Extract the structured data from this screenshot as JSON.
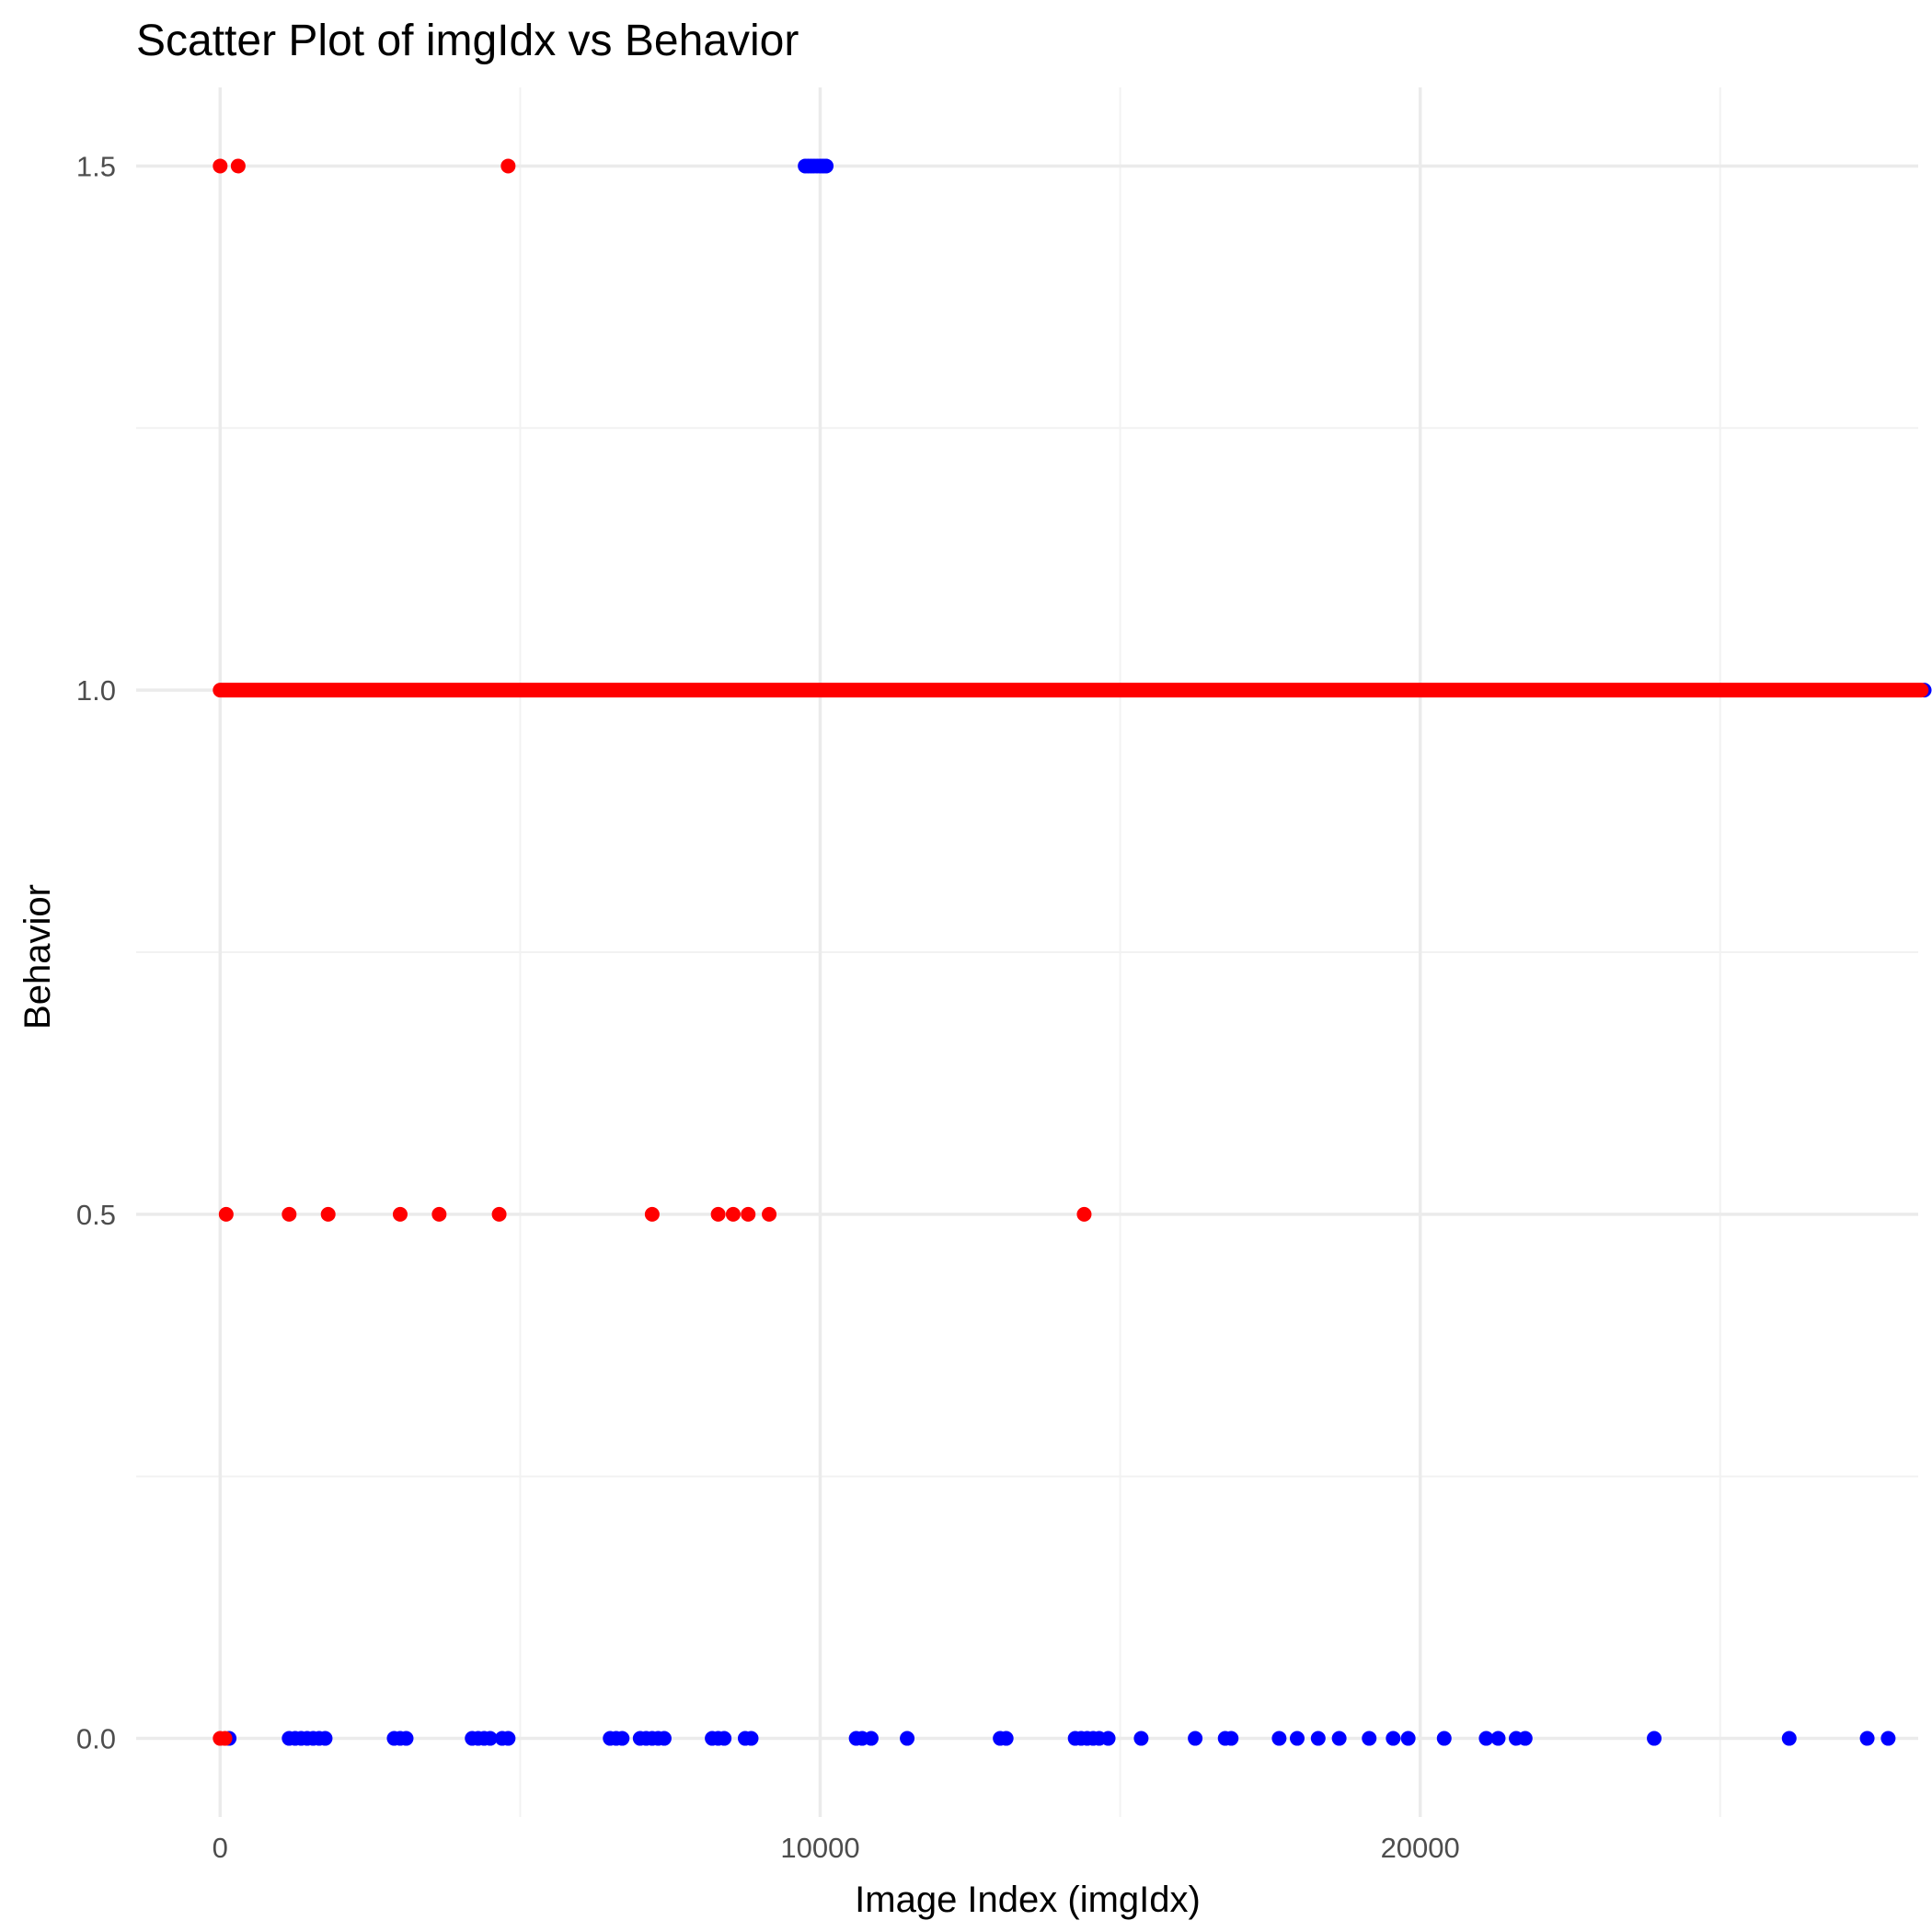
{
  "chart_data": {
    "type": "scatter",
    "title": "Scatter Plot of imgIdx vs Behavior",
    "xlabel": "Image Index (imgIdx)",
    "ylabel": "Behavior",
    "xlim": [
      -1400,
      28300
    ],
    "ylim": [
      -0.075,
      1.575
    ],
    "x_ticks": [
      0,
      10000,
      20000
    ],
    "x_tick_labels": [
      "0",
      "10000",
      "20000"
    ],
    "x_minor_ticks": [
      5000,
      15000,
      25000
    ],
    "y_ticks": [
      0.0,
      0.5,
      1.0,
      1.5
    ],
    "y_tick_labels": [
      "0.0",
      "0.5",
      "1.0",
      "1.5"
    ],
    "y_minor_ticks": [
      0.25,
      0.75,
      1.25
    ],
    "grid": true,
    "legend": "none",
    "colors": {
      "red": "#ff0000",
      "blue": "#0000ff",
      "grid_major": "#ebebeb",
      "grid_minor": "#f2f2f2",
      "background": "#ffffff"
    },
    "series": [
      {
        "color": "#0000ff",
        "points": [
          [
            28400,
            1.0
          ],
          [
            9750,
            1.5
          ],
          [
            9800,
            1.5
          ],
          [
            9850,
            1.5
          ],
          [
            9900,
            1.5
          ],
          [
            9950,
            1.5
          ],
          [
            10000,
            1.5
          ],
          [
            10050,
            1.5
          ],
          [
            10100,
            1.5
          ],
          [
            150,
            0.0
          ],
          [
            1150,
            0.0
          ],
          [
            1250,
            0.0
          ],
          [
            1350,
            0.0
          ],
          [
            1450,
            0.0
          ],
          [
            1550,
            0.0
          ],
          [
            1650,
            0.0
          ],
          [
            1750,
            0.0
          ],
          [
            2900,
            0.0
          ],
          [
            3000,
            0.0
          ],
          [
            3100,
            0.0
          ],
          [
            4200,
            0.0
          ],
          [
            4300,
            0.0
          ],
          [
            4400,
            0.0
          ],
          [
            4500,
            0.0
          ],
          [
            4700,
            0.0
          ],
          [
            4800,
            0.0
          ],
          [
            6500,
            0.0
          ],
          [
            6600,
            0.0
          ],
          [
            6700,
            0.0
          ],
          [
            7000,
            0.0
          ],
          [
            7100,
            0.0
          ],
          [
            7200,
            0.0
          ],
          [
            7300,
            0.0
          ],
          [
            7400,
            0.0
          ],
          [
            8200,
            0.0
          ],
          [
            8300,
            0.0
          ],
          [
            8400,
            0.0
          ],
          [
            8750,
            0.0
          ],
          [
            8850,
            0.0
          ],
          [
            10600,
            0.0
          ],
          [
            10700,
            0.0
          ],
          [
            10850,
            0.0
          ],
          [
            11450,
            0.0
          ],
          [
            13000,
            0.0
          ],
          [
            13100,
            0.0
          ],
          [
            14250,
            0.0
          ],
          [
            14350,
            0.0
          ],
          [
            14450,
            0.0
          ],
          [
            14550,
            0.0
          ],
          [
            14650,
            0.0
          ],
          [
            14800,
            0.0
          ],
          [
            15350,
            0.0
          ],
          [
            16250,
            0.0
          ],
          [
            16750,
            0.0
          ],
          [
            16850,
            0.0
          ],
          [
            17650,
            0.0
          ],
          [
            17950,
            0.0
          ],
          [
            18300,
            0.0
          ],
          [
            18650,
            0.0
          ],
          [
            19150,
            0.0
          ],
          [
            19550,
            0.0
          ],
          [
            19800,
            0.0
          ],
          [
            20400,
            0.0
          ],
          [
            21100,
            0.0
          ],
          [
            21300,
            0.0
          ],
          [
            21600,
            0.0
          ],
          [
            21750,
            0.0
          ],
          [
            23900,
            0.0
          ],
          [
            26150,
            0.0
          ],
          [
            27450,
            0.0
          ],
          [
            27800,
            0.0
          ]
        ]
      },
      {
        "color": "#ff0000",
        "line_segments": [
          [
            0,
            28350,
            1.0
          ]
        ],
        "points": [
          [
            0,
            1.5
          ],
          [
            300,
            1.5
          ],
          [
            4800,
            1.5
          ],
          [
            100,
            0.5
          ],
          [
            1150,
            0.5
          ],
          [
            1800,
            0.5
          ],
          [
            3000,
            0.5
          ],
          [
            3650,
            0.5
          ],
          [
            4650,
            0.5
          ],
          [
            7200,
            0.5
          ],
          [
            8300,
            0.5
          ],
          [
            8550,
            0.5
          ],
          [
            8800,
            0.5
          ],
          [
            9150,
            0.5
          ],
          [
            14400,
            0.5
          ],
          [
            0,
            0.0
          ],
          [
            80,
            0.0
          ]
        ]
      }
    ]
  }
}
